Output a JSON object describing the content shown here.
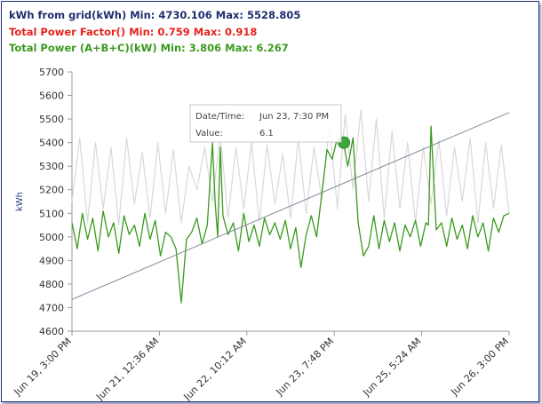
{
  "legend": [
    {
      "text": "kWh from grid(kWh) Min: 4730.106 Max: 5528.805",
      "color": "#1f2e6e"
    },
    {
      "text": "Total Power Factor() Min: 0.759 Max: 0.918",
      "color": "#e8231d"
    },
    {
      "text": "Total Power (A+B+C)(kW) Min: 3.806 Max: 6.267",
      "color": "#3a9a1e"
    }
  ],
  "tooltip": {
    "date_label": "Date/Time:",
    "date_value": "Jun 23, 7:30 PM",
    "value_label": "Value:",
    "value": "6.1"
  },
  "chart_data": {
    "type": "line",
    "ylabel": "kWh",
    "ylim": [
      4600,
      5700
    ],
    "yticks": [
      "4600",
      "4700",
      "4800",
      "4900",
      "5000",
      "5100",
      "5200",
      "5300",
      "5400",
      "5500",
      "5600",
      "5700"
    ],
    "x_tick_labels": [
      "Jun 19, 3:00 PM",
      "Jun 21, 12:36 AM",
      "Jun 22, 10:12 AM",
      "Jun 23, 7:48 PM",
      "Jun 25, 5:24 AM",
      "Jun 26, 3:00 PM"
    ],
    "x_range_hours": [
      0,
      168
    ],
    "series": [
      {
        "name": "kWh from grid(kWh)",
        "style": "trend line",
        "color": "#7f8c9c",
        "x": [
          0,
          168
        ],
        "y": [
          4735,
          5528
        ]
      },
      {
        "name": "Total Power (A+B+C)(kW)",
        "color": "#3a9a1e",
        "x": [
          0,
          2,
          4,
          6,
          8,
          10,
          12,
          14,
          16,
          18,
          20,
          22,
          24,
          26,
          28,
          30,
          32,
          34,
          36,
          38,
          40,
          42,
          44,
          46,
          48,
          50,
          52,
          54,
          55,
          56,
          57,
          58,
          60,
          62,
          64,
          66,
          68,
          70,
          72,
          74,
          76,
          78,
          80,
          82,
          84,
          86,
          88,
          90,
          92,
          94,
          96,
          98,
          100,
          102,
          104,
          104.5,
          106,
          108,
          110,
          112,
          114,
          116,
          118,
          120,
          122,
          124,
          126,
          128,
          130,
          132,
          134,
          136,
          137,
          138,
          140,
          142,
          144,
          146,
          148,
          150,
          152,
          154,
          156,
          158,
          160,
          162,
          164,
          166,
          168
        ],
        "y": [
          5060,
          4950,
          5100,
          4990,
          5080,
          4940,
          5110,
          5000,
          5060,
          4930,
          5090,
          5010,
          5050,
          4960,
          5100,
          4990,
          5070,
          4920,
          5020,
          5000,
          4950,
          4720,
          4990,
          5020,
          5080,
          4970,
          5050,
          5400,
          5150,
          5000,
          5380,
          5090,
          5010,
          5060,
          4940,
          5100,
          4980,
          5050,
          4960,
          5080,
          5010,
          5060,
          4990,
          5070,
          4950,
          5040,
          4870,
          5010,
          5090,
          5000,
          5180,
          5370,
          5330,
          5420,
          5380,
          5390,
          5300,
          5420,
          5060,
          4920,
          4960,
          5090,
          4950,
          5070,
          4980,
          5060,
          4940,
          5050,
          5000,
          5070,
          4960,
          5060,
          5050,
          5470,
          5030,
          5060,
          4960,
          5080,
          4990,
          5050,
          4950,
          5090,
          5000,
          5060,
          4940,
          5080,
          5020,
          5090,
          5100
        ]
      },
      {
        "name": "Total Power Factor()",
        "color": "#d9d9d9",
        "x": [
          0,
          3,
          6,
          9,
          12,
          15,
          18,
          21,
          24,
          27,
          30,
          33,
          36,
          39,
          42,
          45,
          48,
          51,
          54,
          57,
          60,
          63,
          66,
          69,
          72,
          75,
          78,
          81,
          84,
          87,
          90,
          93,
          96,
          99,
          102,
          105,
          108,
          111,
          114,
          117,
          120,
          123,
          126,
          129,
          132,
          135,
          138,
          141,
          144,
          147,
          150,
          153,
          156,
          159,
          162,
          165,
          168
        ],
        "y": [
          5150,
          5420,
          5060,
          5400,
          5120,
          5380,
          5050,
          5420,
          5140,
          5360,
          5080,
          5400,
          5100,
          5370,
          5060,
          5300,
          5200,
          5380,
          5150,
          5430,
          5080,
          5380,
          5120,
          5400,
          5060,
          5390,
          5140,
          5350,
          5080,
          5420,
          5100,
          5380,
          5160,
          5480,
          5120,
          5520,
          5200,
          5540,
          5150,
          5500,
          5080,
          5450,
          5120,
          5400,
          5060,
          5380,
          5140,
          5410,
          5090,
          5380,
          5150,
          5420,
          5060,
          5400,
          5120,
          5390,
          5100
        ]
      }
    ],
    "highlight_point": {
      "x": 104.5,
      "y": 5400
    }
  }
}
